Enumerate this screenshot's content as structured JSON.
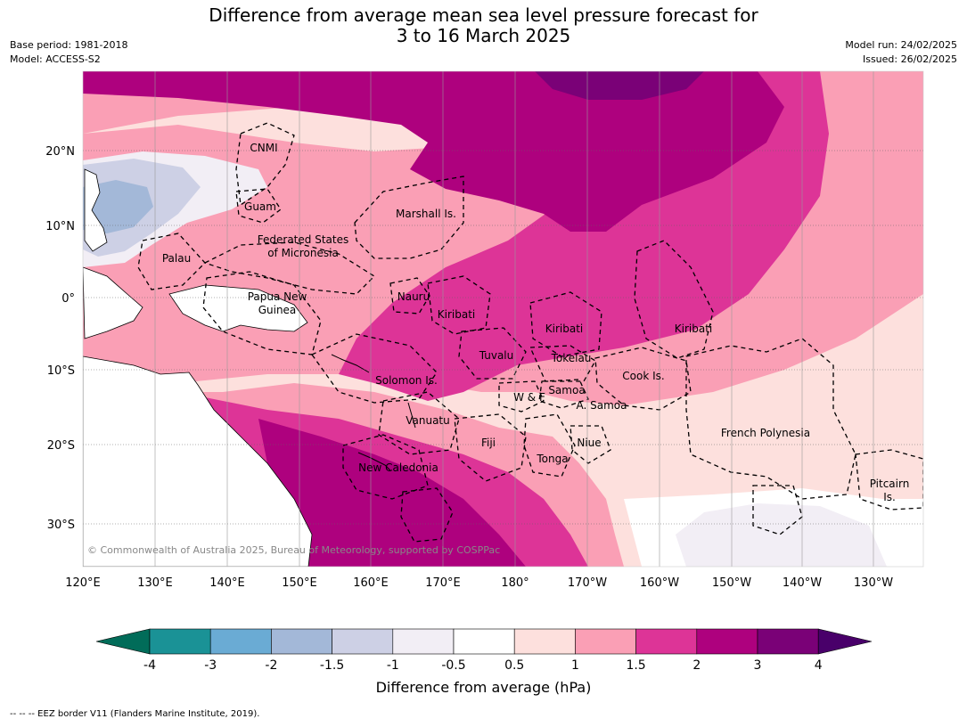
{
  "title_line1": "Difference from average mean sea level pressure forecast for",
  "title_line2": "3 to 16 March 2025",
  "base_period": "Base period: 1981-2018",
  "model": "Model: ACCESS-S2",
  "model_run": "Model run: 24/02/2025",
  "issued": "Issued: 26/02/2025",
  "copyright": "© Commonwealth of Australia 2025, Bureau of Meteorology, supported by COSPPac",
  "lat_labels": [
    "20°N",
    "10°N",
    "0°",
    "10°S",
    "20°S",
    "30°S"
  ],
  "lon_labels": [
    "120°E",
    "130°E",
    "140°E",
    "150°E",
    "160°E",
    "170°E",
    "180°",
    "170°W",
    "160°W",
    "150°W",
    "140°W",
    "130°W"
  ],
  "regions": [
    "CNMI",
    "Guam",
    "Marshall Is.",
    "Federated States",
    "of Micronesia",
    "Palau",
    "Papua New",
    "Guinea",
    "Nauru",
    "Kiribati",
    "Kiribati",
    "Kiribati",
    "Tuvalu",
    "Tokelau",
    "Solomon Is.",
    "Cook Is.",
    "Samoa",
    "W & F",
    "A. Samoa",
    "Vanuatu",
    "Fiji",
    "Niue",
    "French Polynesia",
    "Tonga",
    "New Caledonia",
    "Pitcairn",
    "Is."
  ],
  "colorbar": {
    "ticks": [
      "-4",
      "-3",
      "-2",
      "-1.5",
      "-1",
      "-0.5",
      "0.5",
      "1",
      "1.5",
      "2",
      "3",
      "4"
    ],
    "colors": [
      "#1a9296",
      "#6aabd4",
      "#a3b8d8",
      "#cdd0e5",
      "#f2eef5",
      "#ffffff",
      "#fde0dd",
      "#fa9fb5",
      "#dd3497",
      "#ae017e",
      "#7a0177"
    ],
    "low_extend": "#016c59",
    "high_extend": "#49006a"
  },
  "colorbar_label": "Difference from average (hPa)",
  "footnote": "--  --  -- EEZ border V11 (Flanders Marine Institute, 2019)."
}
